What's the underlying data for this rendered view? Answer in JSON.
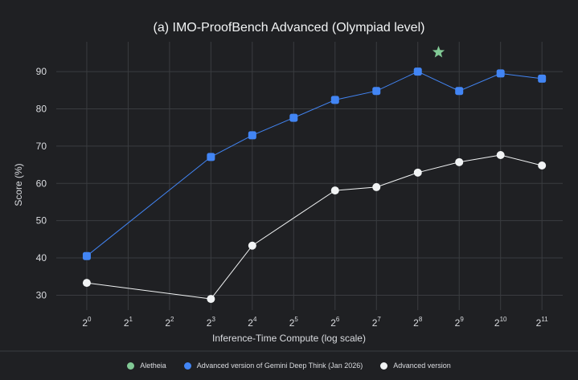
{
  "chart_data": {
    "type": "line",
    "title": "(a) IMO-ProofBench Advanced (Olympiad level)",
    "xlabel": "Inference-Time Compute (log scale)",
    "ylabel": "Score (%)",
    "x_scale": "log2",
    "x_ticks": [
      {
        "base": "2",
        "exp": "0",
        "value": 1
      },
      {
        "base": "2",
        "exp": "1",
        "value": 2
      },
      {
        "base": "2",
        "exp": "2",
        "value": 4
      },
      {
        "base": "2",
        "exp": "3",
        "value": 8
      },
      {
        "base": "2",
        "exp": "4",
        "value": 16
      },
      {
        "base": "2",
        "exp": "5",
        "value": 32
      },
      {
        "base": "2",
        "exp": "6",
        "value": 64
      },
      {
        "base": "2",
        "exp": "7",
        "value": 128
      },
      {
        "base": "2",
        "exp": "8",
        "value": 256
      },
      {
        "base": "2",
        "exp": "9",
        "value": 512
      },
      {
        "base": "2",
        "exp": "10",
        "value": 1024
      },
      {
        "base": "2",
        "exp": "11",
        "value": 2048
      }
    ],
    "y_ticks": [
      30,
      40,
      50,
      60,
      70,
      80,
      90
    ],
    "xlim": [
      0.6,
      2900
    ],
    "ylim": [
      26,
      98
    ],
    "grid": true,
    "legend_position": "bottom-center",
    "series": [
      {
        "name": "Aletheia",
        "color": "#81c995",
        "marker": "star",
        "points": [
          {
            "x": 362,
            "y": 95.2
          }
        ]
      },
      {
        "name": "Advanced version of Gemini Deep Think (Jan 2026)",
        "color": "#4285f4",
        "marker": "square",
        "points": [
          {
            "x": 1,
            "y": 40.5
          },
          {
            "x": 8,
            "y": 67.1
          },
          {
            "x": 16,
            "y": 72.9
          },
          {
            "x": 32,
            "y": 77.6
          },
          {
            "x": 64,
            "y": 82.4
          },
          {
            "x": 128,
            "y": 84.8
          },
          {
            "x": 256,
            "y": 90.0
          },
          {
            "x": 512,
            "y": 84.8
          },
          {
            "x": 1024,
            "y": 89.5
          },
          {
            "x": 2048,
            "y": 88.1
          }
        ]
      },
      {
        "name": "Advanced version",
        "color": "#f1f3f4",
        "marker": "circle",
        "points": [
          {
            "x": 1,
            "y": 33.3
          },
          {
            "x": 8,
            "y": 29.0
          },
          {
            "x": 16,
            "y": 43.3
          },
          {
            "x": 64,
            "y": 58.1
          },
          {
            "x": 128,
            "y": 59.0
          },
          {
            "x": 256,
            "y": 62.9
          },
          {
            "x": 512,
            "y": 65.7
          },
          {
            "x": 1024,
            "y": 67.6
          },
          {
            "x": 2048,
            "y": 64.8
          }
        ]
      }
    ]
  }
}
